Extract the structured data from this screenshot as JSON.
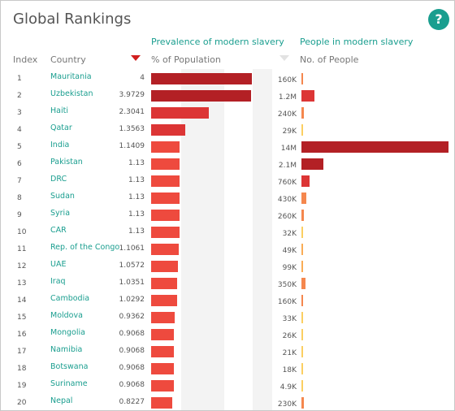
{
  "title": "Global Rankings",
  "help_label": "?",
  "columns": {
    "index": "Index",
    "country": "Country",
    "prevalence_link": "Prevalence of modern slavery",
    "prevalence_unit": "% of Population",
    "people_link": "People in modern slavery",
    "people_unit": "No. of People"
  },
  "colors": {
    "dark": "#b32025",
    "mid": "#dc3535",
    "light": "#ee4a3e",
    "orange": "#f5874e",
    "orange_light": "#f9ad56",
    "yellow": "#fbcf62",
    "accent": "#1a9e8f"
  },
  "chart_data": {
    "type": "bar",
    "series": [
      {
        "name": "% of Population",
        "values": [
          4,
          3.9729,
          2.3041,
          1.3563,
          1.1409,
          1.13,
          1.13,
          1.13,
          1.13,
          1.13,
          1.1061,
          1.0572,
          1.0351,
          1.0292,
          0.9362,
          0.9068,
          0.9068,
          0.9068,
          0.9068,
          0.8227
        ]
      },
      {
        "name": "No. of People",
        "values": [
          160000,
          1200000,
          240000,
          29000,
          14000000,
          2100000,
          760000,
          430000,
          260000,
          32000,
          49000,
          99000,
          350000,
          160000,
          33000,
          26000,
          21000,
          18000,
          4900,
          230000
        ]
      }
    ],
    "rows": [
      {
        "index": "1",
        "country": "Mauritania",
        "pct": "4",
        "people": "160K"
      },
      {
        "index": "2",
        "country": "Uzbekistan",
        "pct": "3.9729",
        "people": "1.2M"
      },
      {
        "index": "3",
        "country": "Haiti",
        "pct": "2.3041",
        "people": "240K"
      },
      {
        "index": "4",
        "country": "Qatar",
        "pct": "1.3563",
        "people": "29K"
      },
      {
        "index": "5",
        "country": "India",
        "pct": "1.1409",
        "people": "14M"
      },
      {
        "index": "6",
        "country": "Pakistan",
        "pct": "1.13",
        "people": "2.1M"
      },
      {
        "index": "7",
        "country": "DRC",
        "pct": "1.13",
        "people": "760K"
      },
      {
        "index": "8",
        "country": "Sudan",
        "pct": "1.13",
        "people": "430K"
      },
      {
        "index": "9",
        "country": "Syria",
        "pct": "1.13",
        "people": "260K"
      },
      {
        "index": "10",
        "country": "CAR",
        "pct": "1.13",
        "people": "32K"
      },
      {
        "index": "11",
        "country": "Rep. of the Congo",
        "pct": "1.1061",
        "people": "49K"
      },
      {
        "index": "12",
        "country": "UAE",
        "pct": "1.0572",
        "people": "99K"
      },
      {
        "index": "13",
        "country": "Iraq",
        "pct": "1.0351",
        "people": "350K"
      },
      {
        "index": "14",
        "country": "Cambodia",
        "pct": "1.0292",
        "people": "160K"
      },
      {
        "index": "15",
        "country": "Moldova",
        "pct": "0.9362",
        "people": "33K"
      },
      {
        "index": "16",
        "country": "Mongolia",
        "pct": "0.9068",
        "people": "26K"
      },
      {
        "index": "17",
        "country": "Namibia",
        "pct": "0.9068",
        "people": "21K"
      },
      {
        "index": "18",
        "country": "Botswana",
        "pct": "0.9068",
        "people": "18K"
      },
      {
        "index": "19",
        "country": "Suriname",
        "pct": "0.9068",
        "people": "4.9K"
      },
      {
        "index": "20",
        "country": "Nepal",
        "pct": "0.8227",
        "people": "230K"
      }
    ]
  }
}
